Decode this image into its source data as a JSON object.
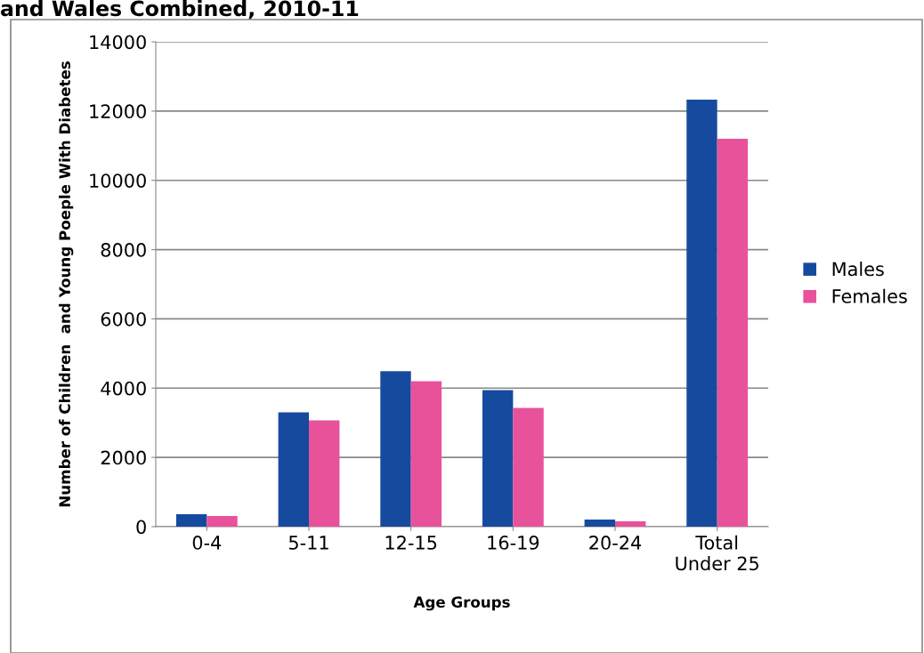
{
  "chart_data": {
    "type": "bar",
    "title": "and Wales Combined, 2010-11",
    "xlabel": "Age Groups",
    "ylabel": "Number of Children  and Young Poeple With Diabetes",
    "categories": [
      "0-4",
      "5-11",
      "12-15",
      "16-19",
      "20-24",
      "Total\nUnder 25"
    ],
    "series": [
      {
        "name": "Males",
        "color": "#164a9e",
        "values": [
          360,
          3300,
          4490,
          3940,
          205,
          12330
        ]
      },
      {
        "name": "Females",
        "color": "#e8529b",
        "values": [
          310,
          3070,
          4200,
          3430,
          155,
          11200
        ]
      }
    ],
    "ylim": [
      0,
      14000
    ],
    "yticks": [
      0,
      2000,
      4000,
      6000,
      8000,
      10000,
      12000,
      14000
    ],
    "grid": "y",
    "legend": "right"
  }
}
